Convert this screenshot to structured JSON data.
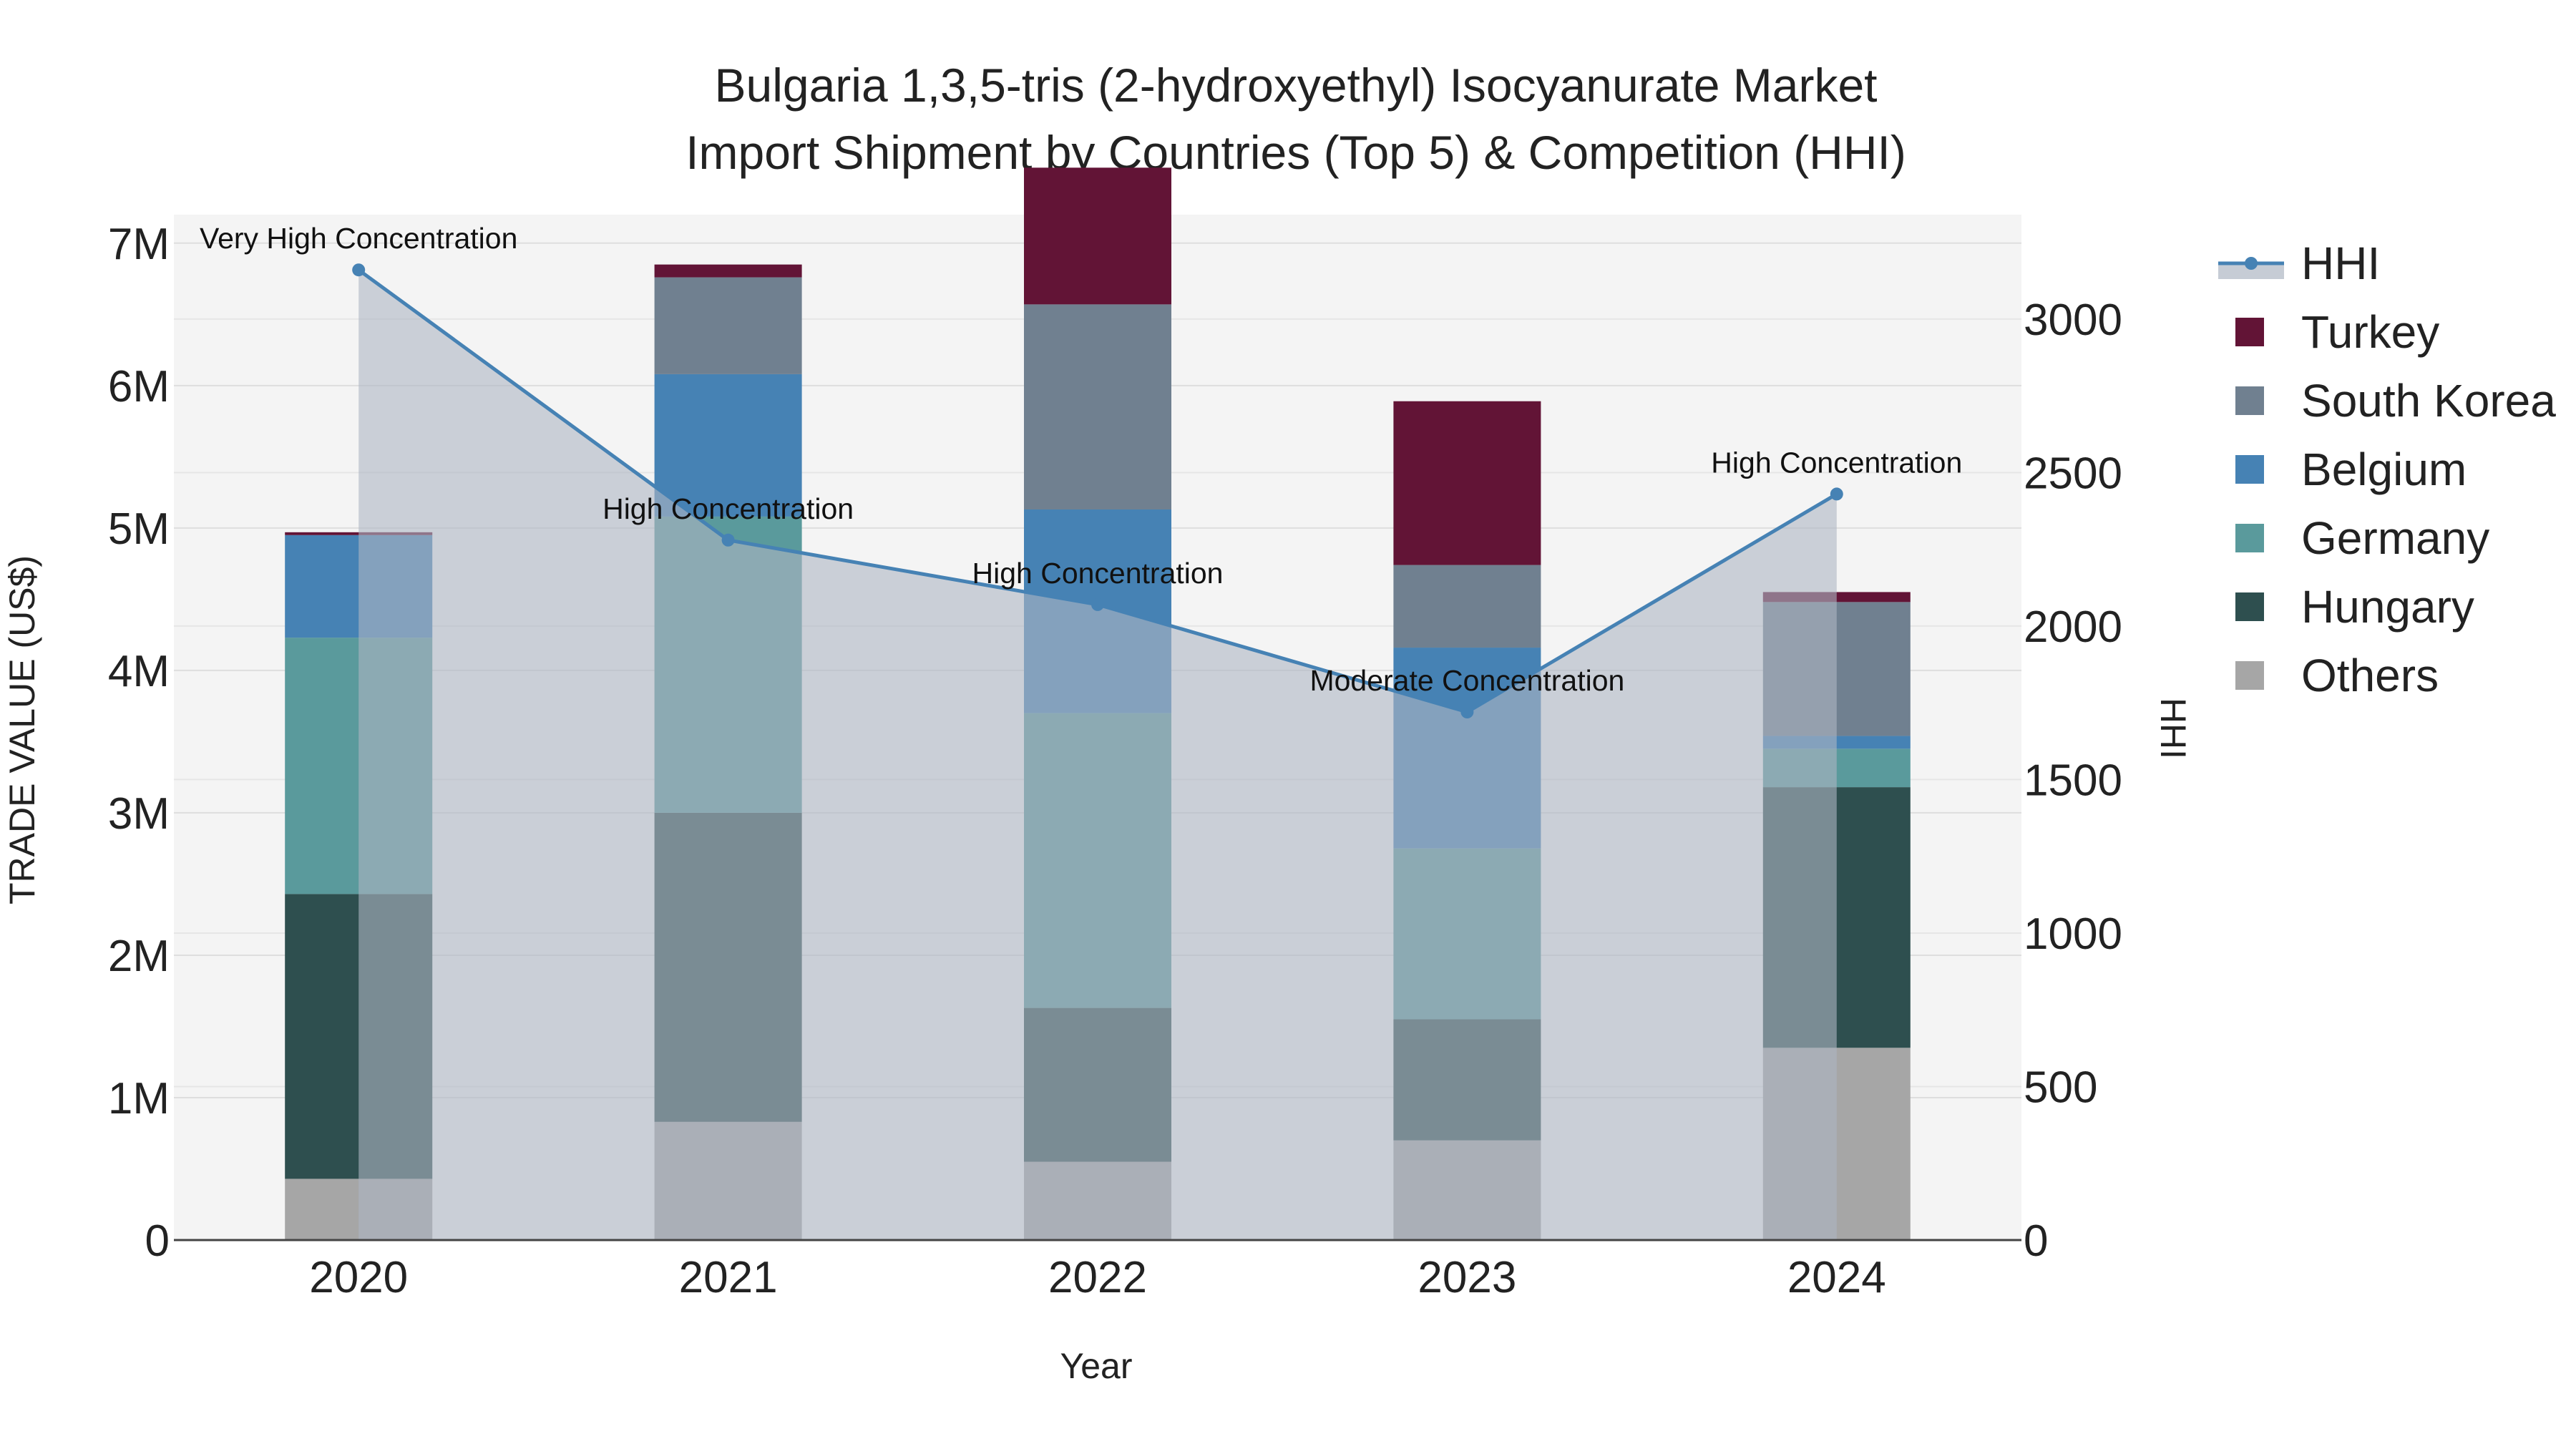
{
  "chart_data": {
    "type": "bar",
    "stacked": true,
    "title_line1": "Bulgaria 1,3,5-tris (2-hydroxyethyl) Isocyanurate Market",
    "title_line2": "Import Shipment by Countries (Top 5) & Competition (HHI)",
    "xlabel": "Year",
    "ylabel": "TRADE VALUE (US$)",
    "y2label": "HHI",
    "categories": [
      "2020",
      "2021",
      "2022",
      "2023",
      "2024"
    ],
    "ylim": [
      0,
      7200000
    ],
    "y_ticks": [
      0,
      1000000,
      2000000,
      3000000,
      4000000,
      5000000,
      6000000,
      7000000
    ],
    "y_tick_labels": [
      "0",
      "1M",
      "2M",
      "3M",
      "4M",
      "5M",
      "6M",
      "7M"
    ],
    "y2lim": [
      0,
      3340
    ],
    "y2_ticks": [
      0,
      500,
      1000,
      1500,
      2000,
      2500,
      3000
    ],
    "y2_tick_labels": [
      "0",
      "500",
      "1000",
      "1500",
      "2000",
      "2500",
      "3000"
    ],
    "legend_position": "right",
    "series": [
      {
        "name": "Others",
        "color": "#a6a6a6",
        "values": [
          430000,
          830000,
          550000,
          700000,
          1350000
        ]
      },
      {
        "name": "Hungary",
        "color": "#2e4f4f",
        "values": [
          2000000,
          2170000,
          1080000,
          850000,
          1830000
        ]
      },
      {
        "name": "Germany",
        "color": "#5a9a9c",
        "values": [
          1800000,
          2080000,
          2070000,
          1200000,
          270000
        ]
      },
      {
        "name": "Belgium",
        "color": "#4682b4",
        "values": [
          720000,
          1000000,
          1430000,
          1410000,
          90000
        ]
      },
      {
        "name": "South Korea",
        "color": "#708090",
        "values": [
          0,
          680000,
          1440000,
          580000,
          940000
        ]
      },
      {
        "name": "Turkey",
        "color": "#621436",
        "values": [
          20000,
          90000,
          960000,
          1150000,
          70000
        ]
      }
    ],
    "hhi": {
      "name": "HHI",
      "color": "#4682b4",
      "values": [
        3160,
        2280,
        2070,
        1720,
        2430
      ],
      "labels": [
        "Very High Concentration",
        "High Concentration",
        "High Concentration",
        "Moderate Concentration",
        "High Concentration"
      ]
    },
    "legend_order": [
      "HHI",
      "Turkey",
      "South Korea",
      "Belgium",
      "Germany",
      "Hungary",
      "Others"
    ]
  }
}
